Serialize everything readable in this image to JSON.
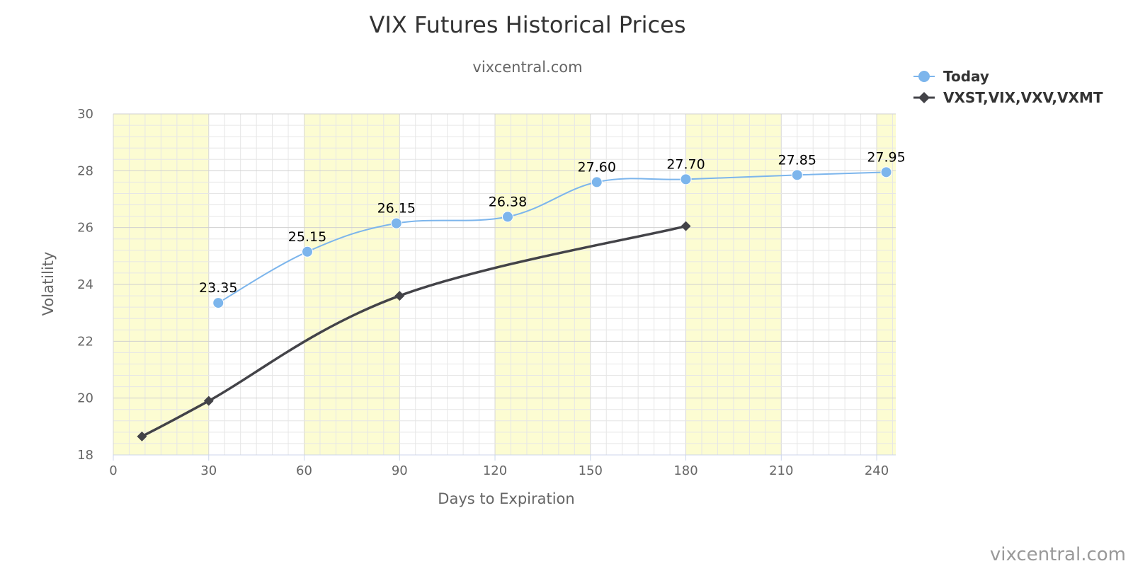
{
  "chart_data": {
    "type": "line",
    "title": "VIX Futures Historical Prices",
    "subtitle": "vixcentral.com",
    "credit": "vixcentral.com",
    "xlabel": "Days to Expiration",
    "ylabel": "Volatility",
    "xlim": [
      0,
      246
    ],
    "ylim": [
      18,
      30
    ],
    "x_ticks": [
      0,
      30,
      60,
      90,
      120,
      150,
      180,
      210,
      240
    ],
    "y_ticks": [
      18,
      20,
      22,
      24,
      26,
      28,
      30
    ],
    "plot_bands": [
      [
        0,
        30
      ],
      [
        60,
        90
      ],
      [
        120,
        150
      ],
      [
        180,
        210
      ],
      [
        240,
        246
      ]
    ],
    "grid": true,
    "legend_position": "top-right",
    "series": [
      {
        "name": "Today",
        "color": "#7cb5ec",
        "marker": "circle",
        "x": [
          33,
          61,
          89,
          124,
          152,
          180,
          215,
          243
        ],
        "y": [
          23.35,
          25.15,
          26.15,
          26.38,
          27.6,
          27.7,
          27.85,
          27.95
        ],
        "labels": [
          "23.35",
          "25.15",
          "26.15",
          "26.38",
          "27.60",
          "27.70",
          "27.85",
          "27.95"
        ]
      },
      {
        "name": "VXST,VIX,VXV,VXMT",
        "color": "#434348",
        "marker": "diamond",
        "x": [
          9,
          30,
          90,
          180
        ],
        "y": [
          18.65,
          19.9,
          23.6,
          26.05
        ]
      }
    ]
  }
}
